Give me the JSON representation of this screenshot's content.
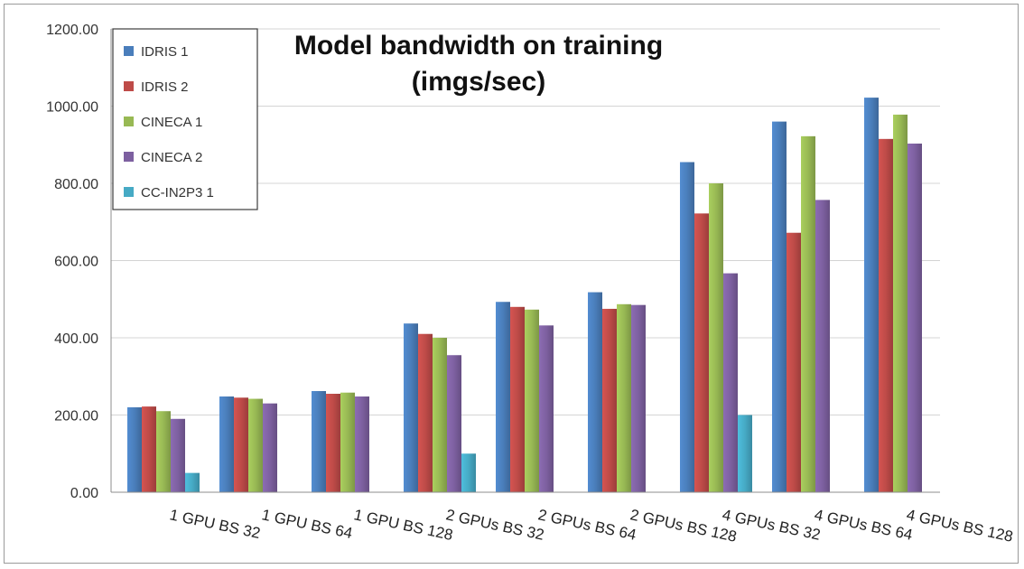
{
  "chart_data": {
    "type": "bar",
    "title": [
      "Model bandwidth on training",
      "(imgs/sec)"
    ],
    "xlabel": "",
    "ylabel": "",
    "ylim": [
      0,
      1200
    ],
    "ytick_labels": [
      "0.00",
      "200.00",
      "400.00",
      "600.00",
      "800.00",
      "1000.00",
      "1200.00"
    ],
    "grid": true,
    "legend_position": "top-left",
    "categories": [
      "1 GPU BS 32",
      "1 GPU BS 64",
      "1 GPU BS 128",
      "2 GPUs BS 32",
      "2 GPUs BS 64",
      "2 GPUs BS 128",
      "4 GPUs BS 32",
      "4 GPUs BS 64",
      "4 GPUs BS 128"
    ],
    "series": [
      {
        "name": "IDRIS 1",
        "color": "#4a7ebb",
        "values": [
          220,
          248,
          262,
          437,
          493,
          518,
          855,
          960,
          1022
        ]
      },
      {
        "name": "IDRIS 2",
        "color": "#be4b48",
        "values": [
          222,
          245,
          255,
          410,
          480,
          475,
          722,
          672,
          915
        ]
      },
      {
        "name": "CINECA 1",
        "color": "#98b954",
        "values": [
          210,
          242,
          258,
          400,
          473,
          487,
          800,
          922,
          978
        ]
      },
      {
        "name": "CINECA 2",
        "color": "#7d60a0",
        "values": [
          190,
          230,
          248,
          355,
          432,
          485,
          567,
          757,
          903
        ]
      },
      {
        "name": "CC-IN2P3 1",
        "color": "#46aac5",
        "values": [
          50,
          null,
          null,
          100,
          null,
          null,
          200,
          null,
          null
        ]
      }
    ]
  }
}
